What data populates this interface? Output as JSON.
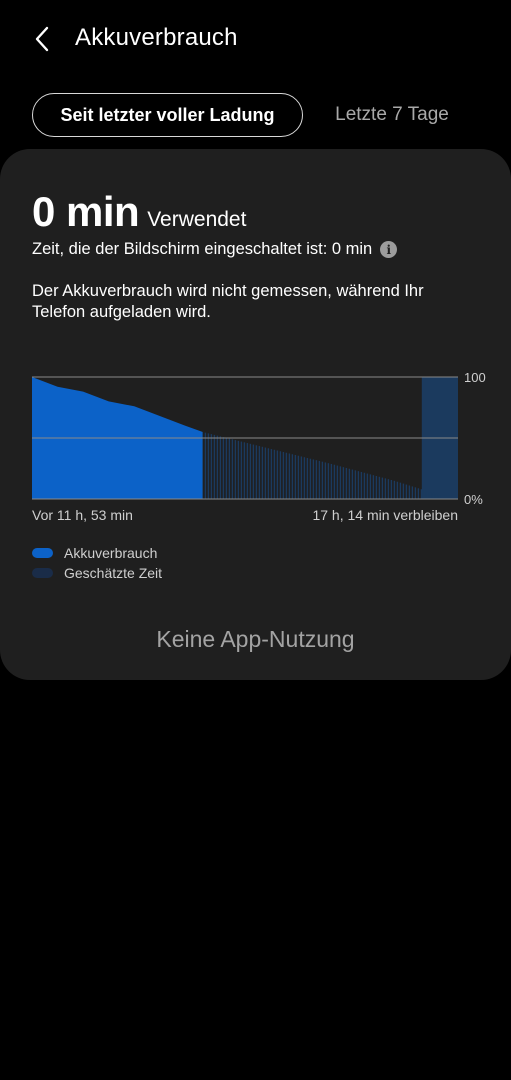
{
  "header": {
    "title": "Akkuverbrauch"
  },
  "tabs": [
    {
      "label": "Seit letzter voller Ladung",
      "active": true
    },
    {
      "label": "Letzte 7 Tage",
      "active": false
    }
  ],
  "summary": {
    "usage_value": "0 min",
    "usage_label": "Verwendet",
    "screen_time": "Zeit, die der Bildschirm eingeschaltet ist: 0 min",
    "description": "Der Akkuverbrauch wird nicht gemessen, während Ihr Telefon aufgeladen wird."
  },
  "chart_data": {
    "type": "area",
    "title": "",
    "ylabel": "",
    "xlabel": "",
    "ylim": [
      0,
      100
    ],
    "y_ticks": [
      "100",
      "0%"
    ],
    "x_labels": {
      "start": "Vor 11 h, 53 min",
      "end": "17 h, 14 min verbleiben"
    },
    "series": [
      {
        "name": "Akkuverbrauch",
        "color": "#0c62c8",
        "x_fraction": [
          0,
          0.06,
          0.12,
          0.18,
          0.24,
          0.3,
          0.36,
          0.4
        ],
        "values": [
          100,
          92,
          88,
          80,
          76,
          68,
          60,
          55
        ]
      },
      {
        "name": "Geschätzte Zeit",
        "color": "#1b3a5e",
        "x_fraction": [
          0.4,
          0.55,
          0.7,
          0.85,
          0.96
        ],
        "values": [
          55,
          42,
          29,
          15,
          3
        ]
      }
    ],
    "charging_segment": {
      "x_start_fraction": 0.915,
      "x_end_fraction": 1.0
    },
    "grid": true,
    "legend_position": "bottom-left"
  },
  "legend": [
    {
      "label": "Akkuverbrauch",
      "color": "#0c62c8"
    },
    {
      "label": "Geschätzte Zeit",
      "color": "#1a2c48"
    }
  ],
  "footer": {
    "no_app_usage": "Keine App-Nutzung"
  },
  "icons": {
    "back": "chevron-left-icon",
    "info": "info-icon"
  }
}
